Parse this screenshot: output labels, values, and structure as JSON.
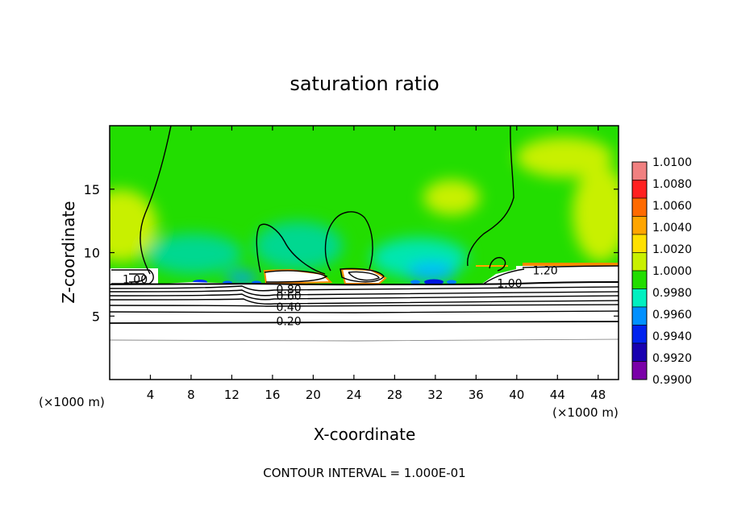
{
  "chart_data": {
    "type": "heatmap",
    "title": "saturation ratio",
    "xlabel": "X-coordinate",
    "ylabel": "Z-coordinate",
    "x_unit": "(×1000 m)",
    "x_unit_right": "(×1000 m)",
    "xlim": [
      0,
      50
    ],
    "ylim": [
      0,
      20
    ],
    "x_ticks": [
      4,
      8,
      12,
      16,
      20,
      24,
      28,
      32,
      36,
      40,
      44,
      48
    ],
    "y_ticks": [
      5,
      10,
      15
    ],
    "colorbar": {
      "levels": [
        "1.0100",
        "1.0080",
        "1.0060",
        "1.0040",
        "1.0020",
        "1.0000",
        "0.9980",
        "0.9960",
        "0.9940",
        "0.9920",
        "0.9900"
      ],
      "colors": [
        "#f08080",
        "#ff2020",
        "#ff6a00",
        "#ffa500",
        "#ffe000",
        "#c8f000",
        "#22dd00",
        "#00f0c0",
        "#0090ff",
        "#0022ee",
        "#1800b0",
        "#7a00a8"
      ]
    },
    "contour_labels": [
      {
        "text": "1.00",
        "x": 2.5,
        "z": 7.9
      },
      {
        "text": "0.80",
        "x": 17.6,
        "z": 7.1
      },
      {
        "text": "0.60",
        "x": 17.6,
        "z": 6.6
      },
      {
        "text": "0.40",
        "x": 17.6,
        "z": 5.7
      },
      {
        "text": "0.20",
        "x": 17.6,
        "z": 4.6
      },
      {
        "text": "1.20",
        "x": 42.8,
        "z": 8.6
      },
      {
        "text": "1.00",
        "x": 39.3,
        "z": 7.6
      }
    ],
    "contour_interval": "CONTOUR INTERVAL = 1.000E-01"
  }
}
